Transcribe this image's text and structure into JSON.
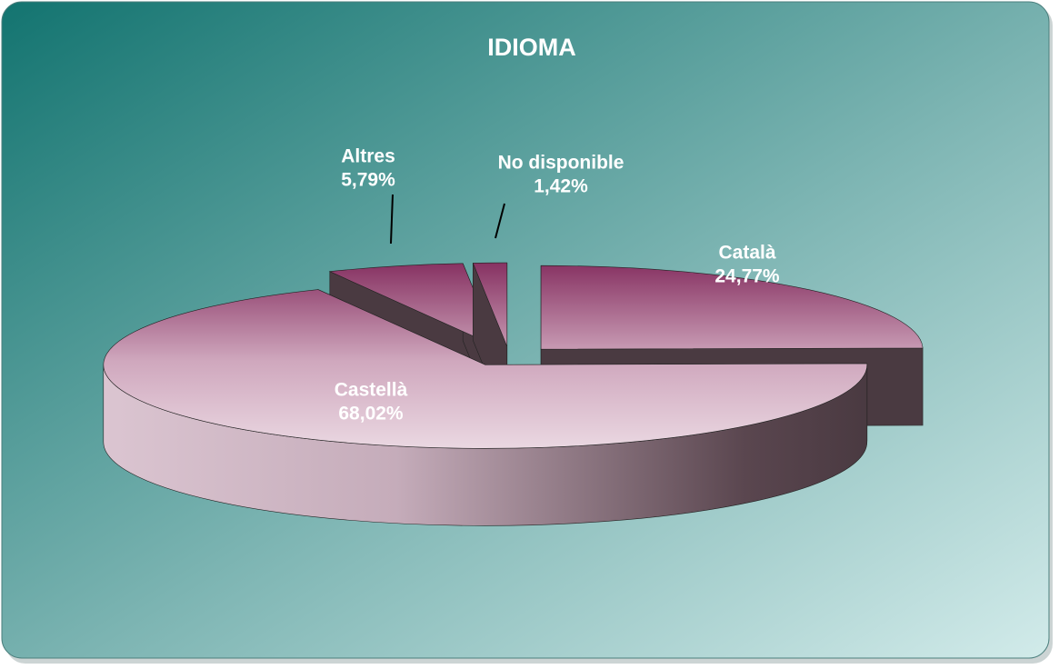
{
  "chart_data": {
    "type": "pie",
    "title": "IDIOMA",
    "categories": [
      "Català",
      "Castellà",
      "Altres",
      "No disponible"
    ],
    "values": [
      24.77,
      68.02,
      5.79,
      1.42
    ],
    "value_labels": [
      "24,77%",
      "68,02%",
      "5,79%",
      "1,42%"
    ]
  }
}
